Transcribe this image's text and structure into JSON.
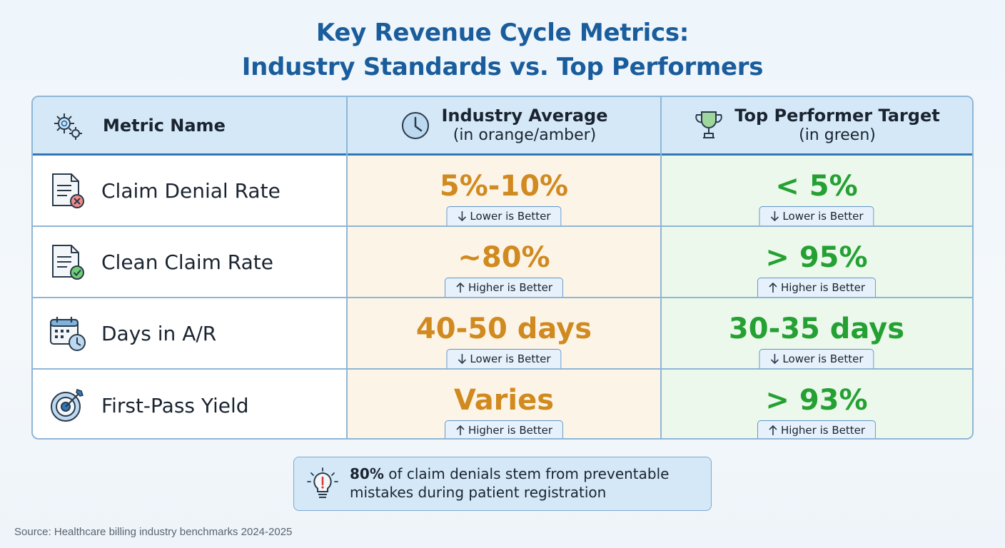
{
  "title": {
    "line1": "Key Revenue Cycle Metrics:",
    "line2": "Industry Standards vs. Top Performers"
  },
  "header": {
    "metric": "Metric Name",
    "average_label": "Industry Average",
    "average_sub": "(in orange/amber)",
    "top_label": "Top Performer Target",
    "top_sub": "(in green)"
  },
  "rows": [
    {
      "name": "Claim Denial Rate",
      "icon": "document-x-icon",
      "average": "5%-10%",
      "top": "< 5%",
      "direction": "Lower is Better"
    },
    {
      "name": "Clean Claim Rate",
      "icon": "document-check-icon",
      "average": "~80%",
      "top": "> 95%",
      "direction": "Higher is Better"
    },
    {
      "name": "Days in A/R",
      "icon": "calendar-clock-icon",
      "average": "40-50 days",
      "top": "30-35 days",
      "direction": "Lower is Better"
    },
    {
      "name": "First-Pass Yield",
      "icon": "target-icon",
      "average": "Varies",
      "top": "> 93%",
      "direction": "Higher is Better"
    }
  ],
  "callout": {
    "emphasis": "80%",
    "text": " of claim denials stem from preventable mistakes during patient registration",
    "icon": "lightbulb-alert-icon"
  },
  "source": "Source: Healthcare billing industry benchmarks 2024-2025",
  "colors": {
    "title": "#1a5d9c",
    "amber": "#d08a1f",
    "green": "#24a132",
    "header_bg": "#d5e8f7",
    "amber_bg": "#fdf4e8",
    "green_bg": "#ecf8ec"
  }
}
